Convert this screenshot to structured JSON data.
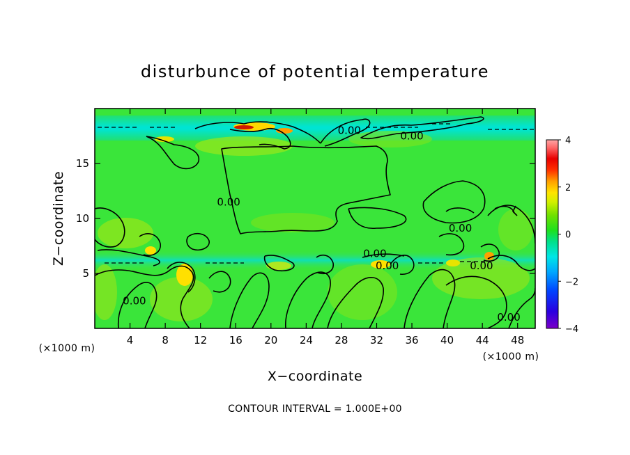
{
  "chart_data": {
    "type": "heatmap",
    "title": "disturbunce of potential temperature",
    "xlabel": "X−coordinate",
    "ylabel": "Z−coordinate",
    "x_unit_label": "(×1000 m)",
    "z_unit_label": "(×1000 m)",
    "xlim": [
      0,
      50
    ],
    "ylim": [
      0,
      20
    ],
    "x_ticks": [
      4,
      8,
      12,
      16,
      20,
      24,
      28,
      32,
      36,
      40,
      44,
      48
    ],
    "y_ticks": [
      5,
      10,
      15
    ],
    "colorbar": {
      "range": [
        -4,
        4
      ],
      "ticks": [
        4,
        2,
        0,
        -2,
        -4
      ]
    },
    "contour_interval_text": "CONTOUR INTERVAL = 1.000E+00",
    "contour_labels": [
      {
        "text": "0.00",
        "x": 28.9,
        "z": 18.0
      },
      {
        "text": "0.00",
        "x": 36.0,
        "z": 17.5
      },
      {
        "text": "0.00",
        "x": 15.2,
        "z": 11.5
      },
      {
        "text": "0.00",
        "x": 41.5,
        "z": 9.1
      },
      {
        "text": "0.00",
        "x": 31.8,
        "z": 6.8
      },
      {
        "text": "0.00",
        "x": 33.2,
        "z": 5.7
      },
      {
        "text": "0.00",
        "x": 43.9,
        "z": 5.7
      },
      {
        "text": "0.00",
        "x": 4.5,
        "z": 2.5
      },
      {
        "text": "0.00",
        "x": 47.0,
        "z": 1.0
      }
    ]
  }
}
